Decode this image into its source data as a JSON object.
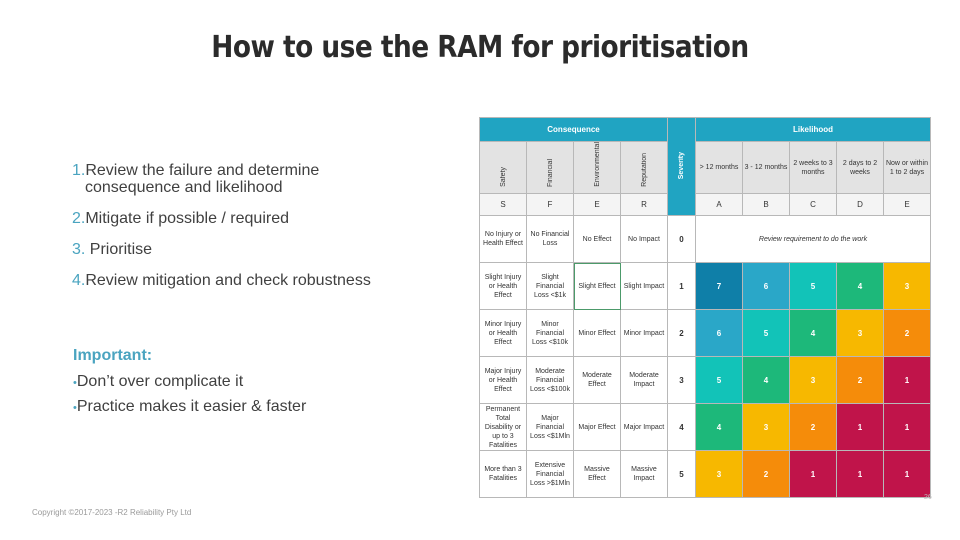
{
  "slide": {
    "title": "How to use the RAM for prioritisation",
    "copyright": "Copyright ©2017-2023 -R2 Reliability Pty Ltd",
    "page_number": "26"
  },
  "steps": [
    {
      "num": "1.",
      "line1": "Review the failure and determine",
      "line2": "consequence and likelihood"
    },
    {
      "num": "2.",
      "line1": "Mitigate if possible / required"
    },
    {
      "num": "3.",
      "line1": " Prioritise"
    },
    {
      "num": "4.",
      "line1": "Review mitigation and check robustness"
    }
  ],
  "important": {
    "heading": "Important:",
    "bullet_mark": "•",
    "bullets": [
      "Don’t over complicate it",
      "Practice makes it easier & faster"
    ]
  },
  "ram": {
    "consequence_label": "Consequence",
    "severity_label": "Severity",
    "likelihood_label": "Likelihood",
    "categories": [
      {
        "name": "Safety",
        "code": "S"
      },
      {
        "name": "Financial",
        "code": "F"
      },
      {
        "name": "Environmental",
        "code": "E"
      },
      {
        "name": "Reputation",
        "code": "R"
      }
    ],
    "likelihoods": [
      {
        "name": "> 12 months",
        "code": "A"
      },
      {
        "name": "3 - 12 months",
        "code": "B"
      },
      {
        "name": "2 weeks to 3 months",
        "code": "C"
      },
      {
        "name": "2 days to 2 weeks",
        "code": "D"
      },
      {
        "name": "Now or within 1 to 2 days",
        "code": "E"
      }
    ],
    "review_text": "Review requirement to do the work",
    "rows": [
      {
        "severity": "0",
        "safety": "No Injury or Health Effect",
        "financial": "No Financial Loss",
        "environmental": "No Effect",
        "reputation": "No Impact",
        "ratings": []
      },
      {
        "severity": "1",
        "safety": "Slight Injury or Health Effect",
        "financial": "Slight Financial Loss <$1k",
        "environmental": "Slight Effect",
        "reputation": "Slight Impact",
        "ratings": [
          "7",
          "6",
          "5",
          "4",
          "3"
        ]
      },
      {
        "severity": "2",
        "safety": "Minor Injury or Health Effect",
        "financial": "Minor Financial Loss <$10k",
        "environmental": "Minor Effect",
        "reputation": "Minor Impact",
        "ratings": [
          "6",
          "5",
          "4",
          "3",
          "2"
        ]
      },
      {
        "severity": "3",
        "safety": "Major Injury or Health Effect",
        "financial": "Moderate Financial Loss <$100k",
        "environmental": "Moderate Effect",
        "reputation": "Moderate Impact",
        "ratings": [
          "5",
          "4",
          "3",
          "2",
          "1"
        ]
      },
      {
        "severity": "4",
        "safety": "Permanent Total Disability or up to 3 Fatalities",
        "financial": "Major Financial Loss <$1Mln",
        "environmental": "Major Effect",
        "reputation": "Major Impact",
        "ratings": [
          "4",
          "3",
          "2",
          "1",
          "1"
        ]
      },
      {
        "severity": "5",
        "safety": "More than 3 Fatalities",
        "financial": "Extensive Financial Loss >$1Mln",
        "environmental": "Massive Effect",
        "reputation": "Massive Impact",
        "ratings": [
          "3",
          "2",
          "1",
          "1",
          "1"
        ]
      }
    ],
    "rating_colors": {
      "7": "#0f7fa8",
      "6": "#2aa7c8",
      "5": "#12c3b8",
      "4": "#1db87a",
      "3": "#f7b800",
      "2": "#f58c0a",
      "1": "#c0144a"
    }
  }
}
